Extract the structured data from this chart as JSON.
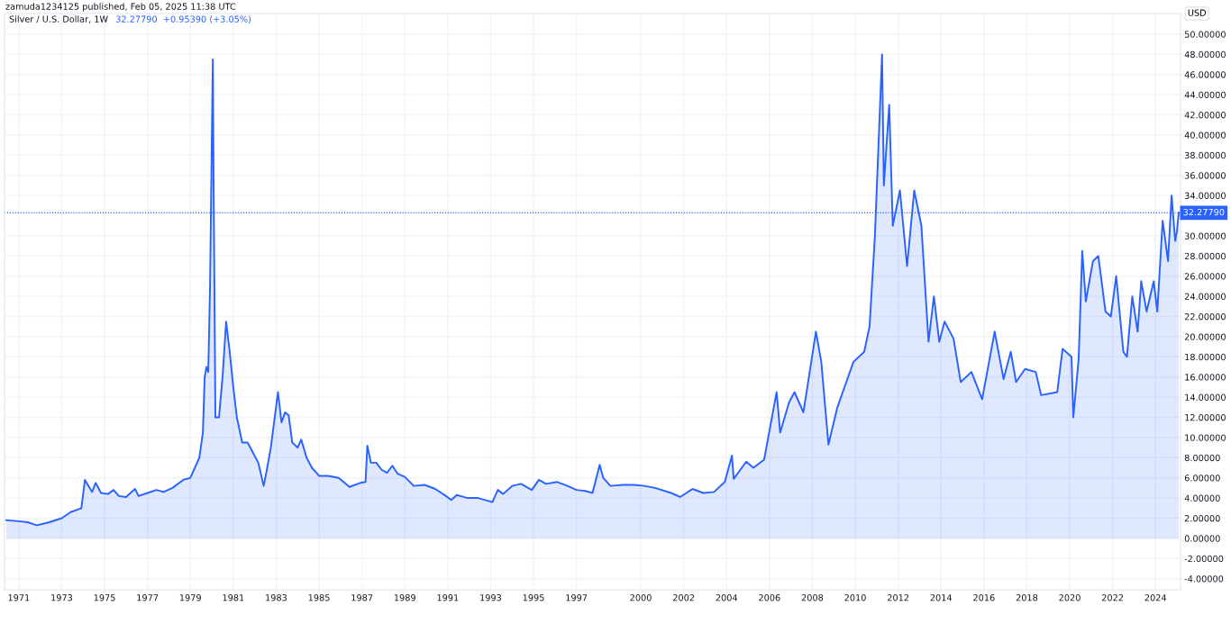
{
  "chart_data": {
    "type": "area",
    "title": "Silver / U.S. Dollar, 1W",
    "subtitle": "32.27790  +0.95390 (+3.05%)",
    "ylabel": "USD",
    "annotations": [
      "zamuda1234125 published, Feb 05, 2025 11:38 UTC"
    ],
    "x": [
      "1970-06",
      "1971-01",
      "1971-06",
      "1971-11",
      "1972-06",
      "1973-01",
      "1973-06",
      "1973-12",
      "1974-02",
      "1974-04",
      "1974-06",
      "1974-08",
      "1974-11",
      "1975-03",
      "1975-06",
      "1975-09",
      "1976-01",
      "1976-06",
      "1976-08",
      "1977-01",
      "1977-06",
      "1977-10",
      "1978-03",
      "1978-09",
      "1979-01",
      "1979-06",
      "1979-08",
      "1979-09",
      "1979-10",
      "1979-11",
      "1979-12",
      "1980-01-18",
      "1980-02",
      "1980-03",
      "1980-05",
      "1980-07",
      "1980-09",
      "1980-11",
      "1981-01",
      "1981-03",
      "1981-06",
      "1981-09",
      "1981-12",
      "1982-03",
      "1982-06",
      "1982-08",
      "1982-10",
      "1983-02",
      "1983-04",
      "1983-06",
      "1983-08",
      "1983-10",
      "1984-01",
      "1984-03",
      "1984-06",
      "1984-09",
      "1985-01",
      "1985-06",
      "1985-12",
      "1986-06",
      "1986-12",
      "1987-03",
      "1987-04",
      "1987-06",
      "1987-09",
      "1987-12",
      "1988-03",
      "1988-06",
      "1988-09",
      "1989-01",
      "1989-06",
      "1989-12",
      "1990-06",
      "1990-12",
      "1991-03",
      "1991-06",
      "1991-12",
      "1992-06",
      "1993-02",
      "1993-05",
      "1993-08",
      "1994-01",
      "1994-06",
      "1994-12",
      "1995-04",
      "1995-08",
      "1996-02",
      "1996-08",
      "1997-01",
      "1997-06",
      "1997-10",
      "1998-02",
      "1998-04",
      "1998-08",
      "1999-03",
      "1999-09",
      "2000-03",
      "2000-09",
      "2001-06",
      "2001-11",
      "2002-06",
      "2002-12",
      "2003-06",
      "2003-12",
      "2004-04",
      "2004-05",
      "2004-12",
      "2005-04",
      "2005-10",
      "2006-05",
      "2006-07",
      "2006-12",
      "2007-03",
      "2007-08",
      "2008-03",
      "2008-06",
      "2008-10",
      "2009-03",
      "2009-06",
      "2009-12",
      "2010-06",
      "2010-09",
      "2010-12",
      "2011-04",
      "2011-05",
      "2011-08",
      "2011-10",
      "2012-02",
      "2012-06",
      "2012-10",
      "2013-02",
      "2013-06",
      "2013-09",
      "2013-12",
      "2014-03",
      "2014-08",
      "2014-12",
      "2015-06",
      "2015-12",
      "2016-07",
      "2016-12",
      "2017-04",
      "2017-07",
      "2017-12",
      "2018-06",
      "2018-09",
      "2019-06",
      "2019-09",
      "2020-02",
      "2020-03",
      "2020-06",
      "2020-08",
      "2020-10",
      "2021-02",
      "2021-05",
      "2021-09",
      "2021-12",
      "2022-03",
      "2022-07",
      "2022-09",
      "2022-12",
      "2023-03",
      "2023-05",
      "2023-08",
      "2023-12",
      "2024-02",
      "2024-04",
      "2024-05",
      "2024-08",
      "2024-10",
      "2024-12",
      "2025-01",
      "2025-02"
    ],
    "series": [
      {
        "color": "#2962ff",
        "values": [
          1.8,
          1.7,
          1.6,
          1.3,
          1.6,
          2.0,
          2.6,
          3.0,
          5.8,
          5.2,
          4.6,
          5.5,
          4.5,
          4.4,
          4.8,
          4.2,
          4.1,
          4.9,
          4.2,
          4.5,
          4.8,
          4.6,
          5.0,
          5.8,
          6.0,
          8.0,
          10.5,
          16.0,
          17.0,
          16.5,
          25,
          47.5,
          35,
          12,
          12,
          16,
          21.5,
          18.5,
          15,
          12,
          9.5,
          9.5,
          8.5,
          7.5,
          5.2,
          7,
          9,
          14.5,
          11.5,
          12.5,
          12.2,
          9.5,
          9,
          9.8,
          8,
          7,
          6.2,
          6.2,
          6,
          5.1,
          5.5,
          5.6,
          9.2,
          7.5,
          7.5,
          6.8,
          6.5,
          7.2,
          6.4,
          6.1,
          5.2,
          5.3,
          4.9,
          4.2,
          3.8,
          4.3,
          4.0,
          4.0,
          3.6,
          4.8,
          4.4,
          5.2,
          5.4,
          4.8,
          5.8,
          5.4,
          5.6,
          5.2,
          4.8,
          4.7,
          4.5,
          7.3,
          6.0,
          5.2,
          5.3,
          5.3,
          5.2,
          5.0,
          4.5,
          4.1,
          4.9,
          4.5,
          4.6,
          5.6,
          8.2,
          5.9,
          7.6,
          7.0,
          7.8,
          14.5,
          10.5,
          13.5,
          14.5,
          12.5,
          20.5,
          17.5,
          9.3,
          13,
          14.5,
          17.5,
          18.5,
          21,
          30,
          48,
          35,
          43,
          31,
          34.5,
          27,
          34.5,
          31,
          19.5,
          24,
          19.5,
          21.5,
          19.8,
          15.5,
          16.5,
          13.8,
          20.5,
          15.8,
          18.5,
          15.5,
          16.8,
          16.5,
          14.2,
          14.5,
          18.8,
          18.0,
          12.0,
          17.8,
          28.5,
          23.5,
          27.5,
          28,
          22.5,
          22,
          26,
          18.5,
          18,
          24,
          20.5,
          25.5,
          22.5,
          25.5,
          22.5,
          28.5,
          31.5,
          27.5,
          34,
          29.5,
          30.5,
          32.3
        ]
      }
    ],
    "xlim": [
      "1970-05",
      "2025-03"
    ],
    "xticks": [
      "1971",
      "1973",
      "1975",
      "1977",
      "1979",
      "1981",
      "1983",
      "1985",
      "1987",
      "1989",
      "1991",
      "1993",
      "1995",
      "1997",
      "2000",
      "2002",
      "2004",
      "2006",
      "2008",
      "2010",
      "2012",
      "2014",
      "2016",
      "2018",
      "2020",
      "2022",
      "2024"
    ],
    "ylim": [
      -5.1,
      52.05
    ],
    "yticks": [
      {
        "value": -4,
        "label": "-4.00000"
      },
      {
        "value": -2,
        "label": "-2.00000"
      },
      {
        "value": 0,
        "label": "0.00000"
      },
      {
        "value": 2,
        "label": "2.00000"
      },
      {
        "value": 4,
        "label": "4.00000"
      },
      {
        "value": 6,
        "label": "6.00000"
      },
      {
        "value": 8,
        "label": "8.00000"
      },
      {
        "value": 10,
        "label": "10.00000"
      },
      {
        "value": 12,
        "label": "12.00000"
      },
      {
        "value": 14,
        "label": "14.00000"
      },
      {
        "value": 16,
        "label": "16.00000"
      },
      {
        "value": 18,
        "label": "18.00000"
      },
      {
        "value": 20,
        "label": "20.00000"
      },
      {
        "value": 22,
        "label": "22.00000"
      },
      {
        "value": 24,
        "label": "24.00000"
      },
      {
        "value": 26,
        "label": "26.00000"
      },
      {
        "value": 28,
        "label": "28.00000"
      },
      {
        "value": 30,
        "label": "30.00000"
      },
      {
        "value": 34,
        "label": "34.00000"
      },
      {
        "value": 36,
        "label": "36.00000"
      },
      {
        "value": 38,
        "label": "38.00000"
      },
      {
        "value": 40,
        "label": "40.00000"
      },
      {
        "value": 42,
        "label": "42.00000"
      },
      {
        "value": 44,
        "label": "44.00000"
      },
      {
        "value": 46,
        "label": "46.00000"
      },
      {
        "value": 48,
        "label": "48.00000"
      },
      {
        "value": 50,
        "label": "50.00000"
      }
    ],
    "ref_lines": [
      {
        "axis": "y",
        "value": 32.2779,
        "label": "32.27790",
        "color": "#2962ff",
        "line_style": "dotted"
      }
    ],
    "grid": true
  }
}
